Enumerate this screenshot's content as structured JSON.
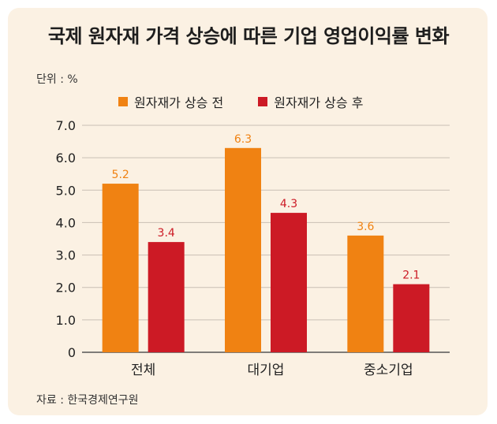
{
  "unit_label": "단위 : %",
  "source_label": "자료 : 한국경제연구원",
  "chart_data": {
    "type": "bar",
    "title": "국제 원자재 가격 상승에 따른 기업 영업이익률 변화",
    "xlabel": "",
    "ylabel": "",
    "categories": [
      "전체",
      "대기업",
      "중소기업"
    ],
    "series": [
      {
        "name": "원자재가 상승 전",
        "values": [
          5.2,
          6.3,
          3.6
        ],
        "color": "#f08212"
      },
      {
        "name": "원자재가 상승 후",
        "values": [
          3.4,
          4.3,
          2.1
        ],
        "color": "#cc1a25"
      }
    ],
    "ylim": [
      0,
      7
    ],
    "yticks": [
      "0",
      "1.0",
      "2.0",
      "3.0",
      "4.0",
      "5.0",
      "6.0",
      "7.0"
    ],
    "grid": true,
    "legend_position": "top"
  }
}
